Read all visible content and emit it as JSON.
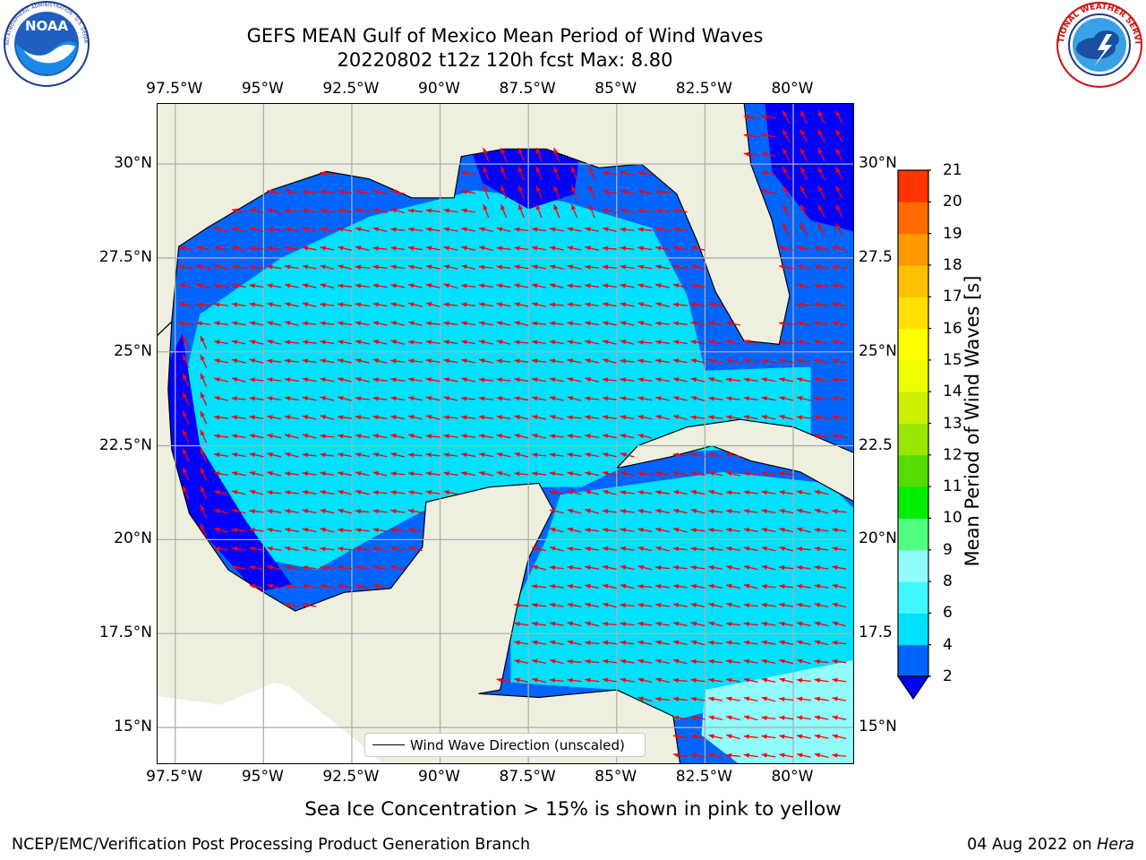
{
  "title": {
    "line1": "GEFS MEAN Gulf of Mexico Mean Period of Wind Waves",
    "line2": "20220802 t12z 120h fcst   Max: 8.80"
  },
  "logos": {
    "noaa": {
      "icon": "noaa-logo",
      "text": "NOAA",
      "ring_text": "NATIONAL OCEANIC AND ATMOSPHERIC ADMINISTRATION · U.S. DEPARTMENT OF COMMERCE"
    },
    "nws": {
      "icon": "nws-logo",
      "ring_text": "NATIONAL WEATHER SERVICE"
    }
  },
  "axes": {
    "lon_labels": [
      "97.5°W",
      "95°W",
      "92.5°W",
      "90°W",
      "87.5°W",
      "85°W",
      "82.5°W",
      "80°W"
    ],
    "lon_values": [
      -97.5,
      -95,
      -92.5,
      -90,
      -87.5,
      -85,
      -82.5,
      -80
    ],
    "lat_labels": [
      "30°N",
      "27.5°N",
      "25°N",
      "22.5°N",
      "20°N",
      "17.5°N",
      "15°N"
    ],
    "lat_labels_right": [
      "30°N",
      "27.5",
      "25°N",
      "22.5",
      "20°N",
      "17.5",
      "15°N"
    ],
    "lat_values": [
      30,
      27.5,
      25,
      22.5,
      20,
      17.5,
      15
    ],
    "lon_range": [
      -98,
      -78.25
    ],
    "lat_range": [
      14,
      31.6
    ]
  },
  "legend": {
    "label": "Wind Wave Direction (unscaled)"
  },
  "colorbar": {
    "label": "Mean Period of Wind Waves [s]",
    "ticks": [
      "2",
      "4",
      "6",
      "8",
      "9",
      "10",
      "11",
      "12",
      "13",
      "14",
      "15",
      "16",
      "17",
      "18",
      "19",
      "20",
      "21"
    ],
    "colors": [
      "#0064ff",
      "#00e0ff",
      "#40f8ff",
      "#90fcfc",
      "#50ff80",
      "#00ee00",
      "#55dd00",
      "#99e600",
      "#ccf000",
      "#eeff00",
      "#ffff00",
      "#ffe000",
      "#ffc000",
      "#ff9900",
      "#ff6a00",
      "#ff3300"
    ],
    "extend_color": "#0000ff"
  },
  "caption": "Sea Ice Concentration > 15% is shown in pink to yellow",
  "footer": {
    "left": "NCEP/EMC/Verification Post Processing Product Generation Branch",
    "date": "04 Aug 2022 on ",
    "host": "Hera"
  },
  "colors": {
    "land": "#efefdf",
    "arrow": "#ff0000",
    "grid": "#b0b0b0"
  }
}
